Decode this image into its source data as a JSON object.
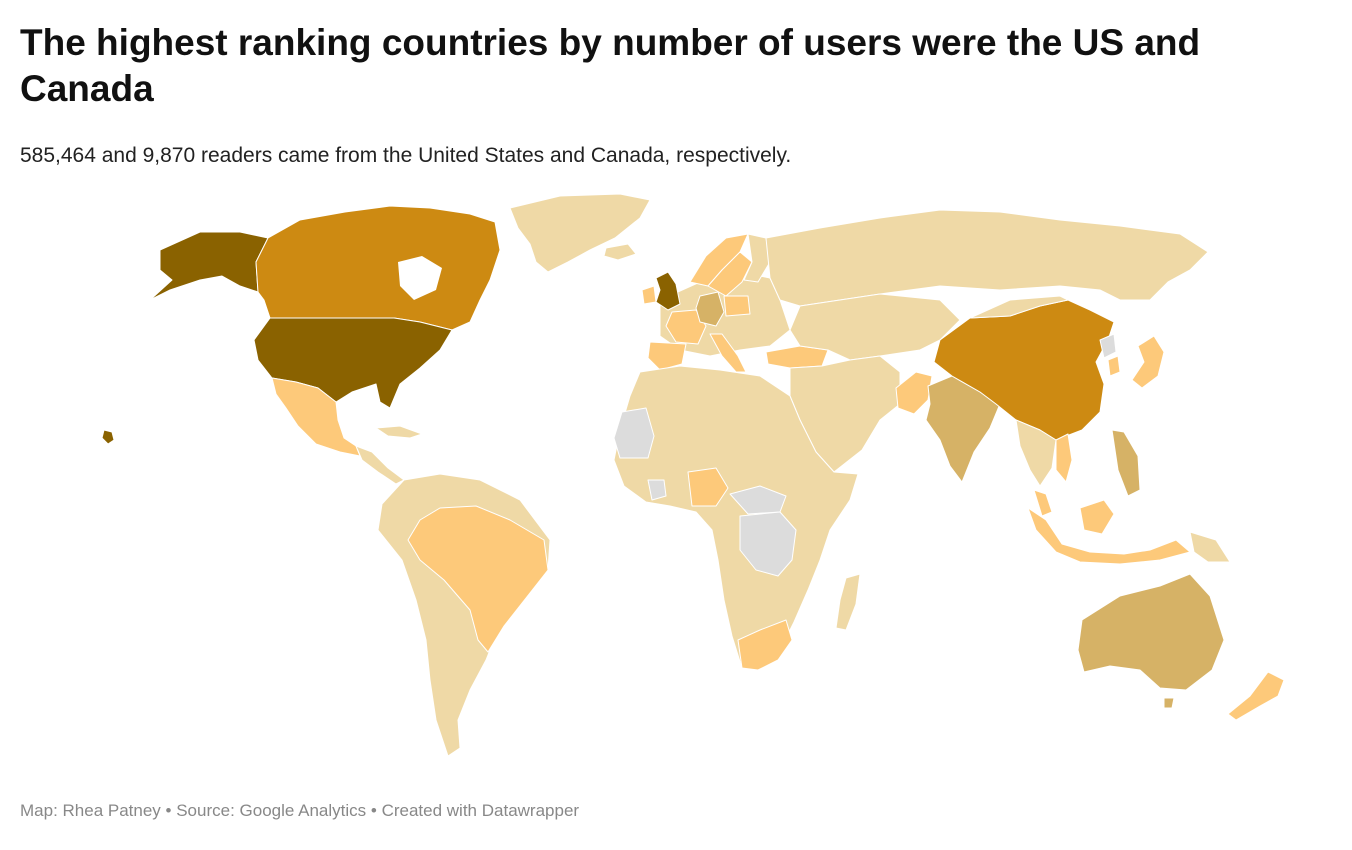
{
  "title": "The highest ranking countries by number of users were the US and Canada",
  "subtitle": "585,464 and 9,870 readers came from the United States and Canada, respectively.",
  "footer": {
    "map_credit": "Map: Rhea Patney",
    "separator": " • ",
    "source": "Source: Google Analytics",
    "created_with": "Created with Datawrapper"
  },
  "colors": {
    "very_high": "#8a6200",
    "high": "#cd8a12",
    "medium": "#d6b266",
    "low": "#fdc97a",
    "very_low": "#efd9a6",
    "no_data": "#dcdcdc"
  },
  "map_data": {
    "type": "choropleth",
    "region": "world",
    "categories": [
      {
        "level": "very_high",
        "countries": [
          "United States",
          "Alaska",
          "United Kingdom"
        ]
      },
      {
        "level": "high",
        "countries": [
          "Canada",
          "China"
        ]
      },
      {
        "level": "medium",
        "countries": [
          "India",
          "Australia",
          "Germany",
          "Philippines"
        ]
      },
      {
        "level": "low",
        "countries": [
          "Mexico",
          "Brazil",
          "Nigeria",
          "South Africa",
          "France",
          "Spain",
          "Italy",
          "Turkey",
          "Japan",
          "Pakistan",
          "Indonesia",
          "Malaysia",
          "Vietnam",
          "New Zealand",
          "Poland",
          "Sweden",
          "Norway",
          "South Korea"
        ]
      },
      {
        "level": "no_data",
        "countries": [
          "Mauritania",
          "DR Congo",
          "Central African Republic",
          "Sierra Leone",
          "North Korea"
        ]
      }
    ]
  }
}
